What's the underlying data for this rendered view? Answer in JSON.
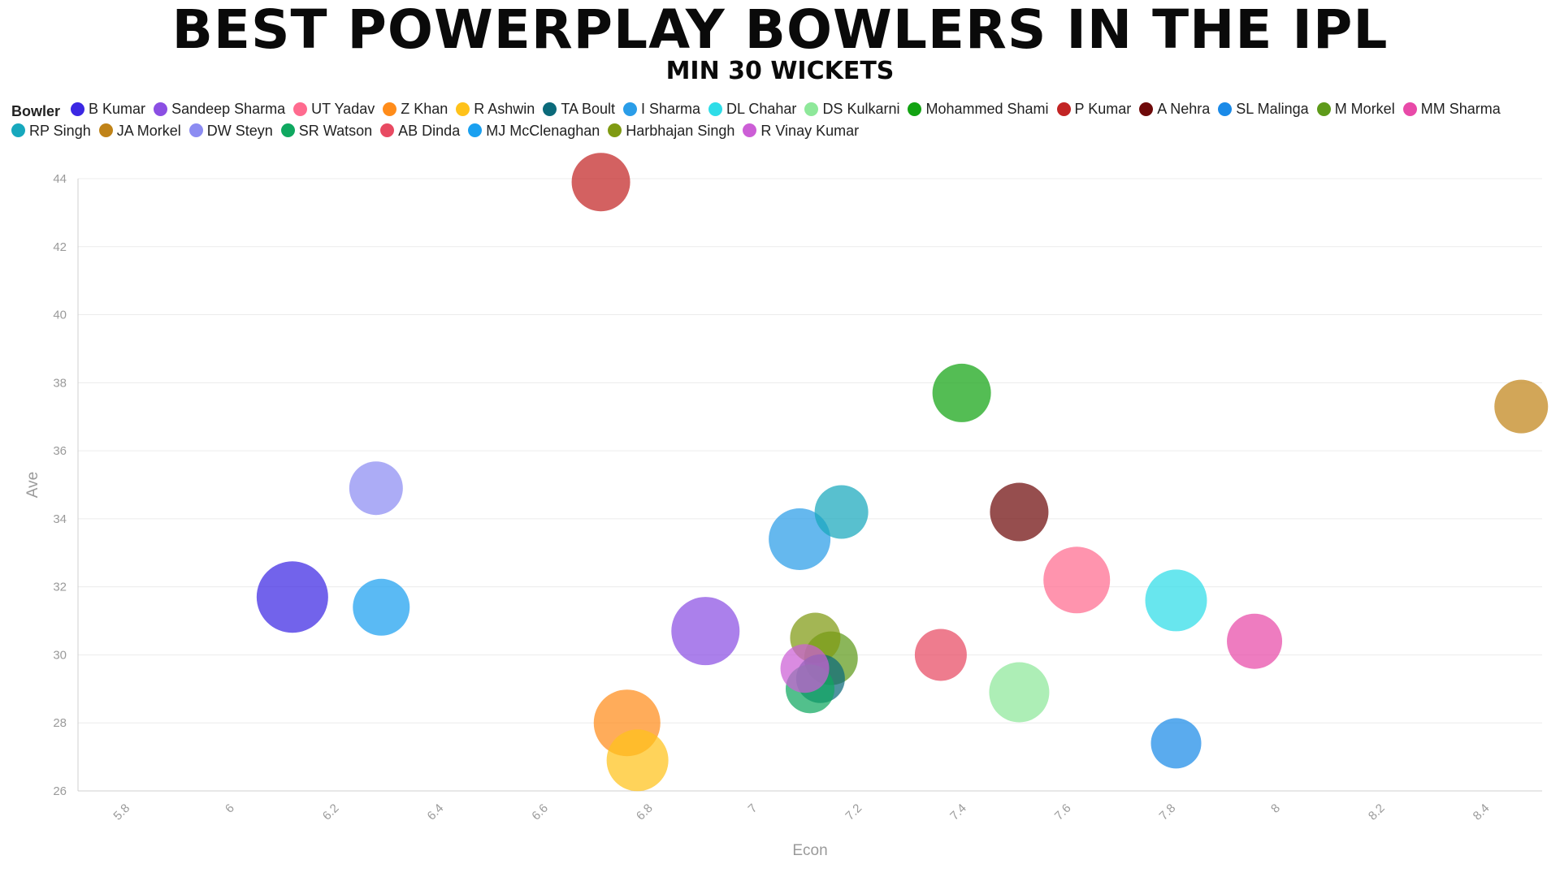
{
  "chart_data": {
    "type": "scatter",
    "title": "BEST POWERPLAY BOWLERS IN THE IPL",
    "subtitle": "MIN 30 WICKETS",
    "legend_title": "Bowler",
    "xlabel": "Econ",
    "ylabel": "Ave",
    "xlim": [
      5.7,
      8.5
    ],
    "ylim": [
      26,
      44
    ],
    "x_ticks": [
      5.8,
      6,
      6.2,
      6.4,
      6.6,
      6.8,
      7,
      7.2,
      7.4,
      7.6,
      7.8,
      8,
      8.2,
      8.4
    ],
    "y_ticks": [
      26,
      28,
      30,
      32,
      34,
      36,
      38,
      40,
      42,
      44
    ],
    "grid": true,
    "legend_position": "top",
    "series": [
      {
        "name": "B Kumar",
        "color": "#3b27e3",
        "x": 6.11,
        "y": 31.7,
        "size": 44
      },
      {
        "name": "Sandeep Sharma",
        "color": "#8b4fe3",
        "x": 6.9,
        "y": 30.7,
        "size": 42
      },
      {
        "name": "UT Yadav",
        "color": "#ff6b8f",
        "x": 7.61,
        "y": 32.2,
        "size": 41
      },
      {
        "name": "Z Khan",
        "color": "#ff8c1a",
        "x": 6.75,
        "y": 28.0,
        "size": 41
      },
      {
        "name": "R Ashwin",
        "color": "#ffc21a",
        "x": 6.77,
        "y": 26.9,
        "size": 38
      },
      {
        "name": "TA Boult",
        "color": "#0b6a7a",
        "x": 7.12,
        "y": 29.3,
        "size": 30
      },
      {
        "name": "I Sharma",
        "color": "#2a9de8",
        "x": 7.08,
        "y": 33.4,
        "size": 38
      },
      {
        "name": "DL Chahar",
        "color": "#2edde8",
        "x": 7.8,
        "y": 31.6,
        "size": 38
      },
      {
        "name": "DS Kulkarni",
        "color": "#8ee89a",
        "x": 7.5,
        "y": 28.9,
        "size": 37
      },
      {
        "name": "Mohammed Shami",
        "color": "#12a312",
        "x": 7.39,
        "y": 37.7,
        "size": 36
      },
      {
        "name": "P Kumar",
        "color": "#c22424",
        "x": 6.7,
        "y": 43.9,
        "size": 36
      },
      {
        "name": "A Nehra",
        "color": "#6e0a0a",
        "x": 7.5,
        "y": 34.2,
        "size": 36
      },
      {
        "name": "SL Malinga",
        "color": "#1a8ae8",
        "x": 7.8,
        "y": 27.4,
        "size": 31
      },
      {
        "name": "M Morkel",
        "color": "#5e9a1a",
        "x": 7.14,
        "y": 29.9,
        "size": 33
      },
      {
        "name": "MM Sharma",
        "color": "#e84aa8",
        "x": 7.95,
        "y": 30.4,
        "size": 34
      },
      {
        "name": "RP Singh",
        "color": "#17a8bd",
        "x": 7.16,
        "y": 34.2,
        "size": 33
      },
      {
        "name": "JA Morkel",
        "color": "#c08318",
        "x": 8.46,
        "y": 37.3,
        "size": 33
      },
      {
        "name": "DW Steyn",
        "color": "#8c8cf2",
        "x": 6.27,
        "y": 34.9,
        "size": 33
      },
      {
        "name": "SR Watson",
        "color": "#0fa860",
        "x": 7.1,
        "y": 29.0,
        "size": 30
      },
      {
        "name": "AB Dinda",
        "color": "#e84a62",
        "x": 7.35,
        "y": 30.0,
        "size": 32
      },
      {
        "name": "MJ McClenaghan",
        "color": "#1aa0f0",
        "x": 6.28,
        "y": 31.4,
        "size": 35
      },
      {
        "name": "Harbhajan Singh",
        "color": "#7f9a12",
        "x": 7.11,
        "y": 30.5,
        "size": 31
      },
      {
        "name": "R Vinay Kumar",
        "color": "#cc5ed6",
        "x": 7.09,
        "y": 29.6,
        "size": 30
      }
    ]
  }
}
